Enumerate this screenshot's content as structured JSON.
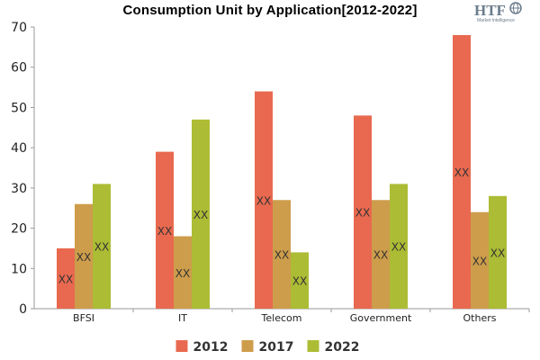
{
  "chart_data": {
    "type": "bar",
    "title": "Consumption Unit by  Application[2012-2022]",
    "categories": [
      "BFSI",
      "IT",
      "Telecom",
      "Government",
      "Others"
    ],
    "series": [
      {
        "name": "2012",
        "color": "#e8694f",
        "values": [
          15,
          39,
          54,
          48,
          68
        ]
      },
      {
        "name": "2017",
        "color": "#cd9d4b",
        "values": [
          26,
          18,
          27,
          27,
          24
        ]
      },
      {
        "name": "2022",
        "color": "#acbc34",
        "values": [
          31,
          47,
          14,
          31,
          28
        ]
      }
    ],
    "data_label": "XX",
    "ylim": [
      0,
      70
    ],
    "yticks": [
      0,
      10,
      20,
      30,
      40,
      50,
      60,
      70
    ],
    "xlabel": "",
    "ylabel": "",
    "grid": false,
    "legend_position": "bottom-center"
  },
  "logo": {
    "text": "HTF",
    "subtext": "Market Intelligence"
  }
}
